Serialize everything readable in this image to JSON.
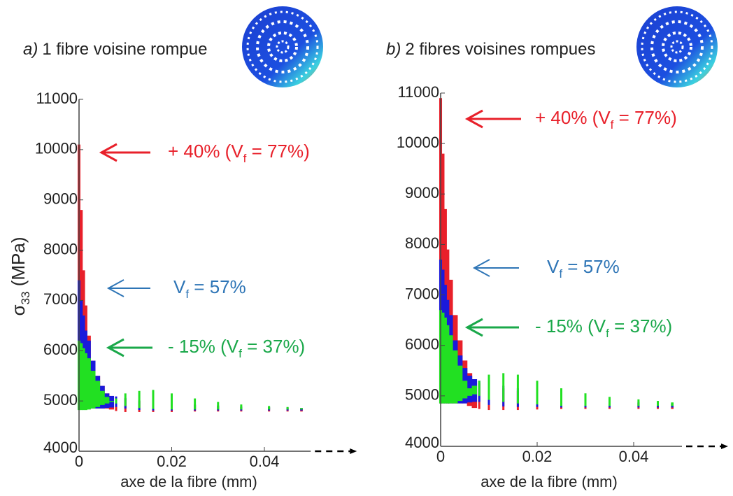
{
  "chart_data": [
    {
      "type": "band",
      "panel_label": "a)",
      "title": "1 fibre voisine rompue",
      "ylabel": [
        "σ",
        "33",
        " (MPa)"
      ],
      "xlabel": "axe de la fibre (mm)",
      "xlim": [
        0,
        0.05
      ],
      "xticks": [
        0,
        0.02,
        0.04
      ],
      "ylim": [
        4000,
        11000
      ],
      "yticks": [
        4000,
        5000,
        6000,
        7000,
        8000,
        9000,
        10000,
        11000
      ],
      "x": [
        0,
        0.0005,
        0.001,
        0.0015,
        0.002,
        0.003,
        0.004,
        0.005,
        0.006,
        0.007,
        0.008,
        0.01,
        0.013,
        0.016,
        0.02,
        0.025,
        0.03,
        0.035,
        0.041,
        0.045,
        0.048
      ],
      "series": [
        {
          "color": "#e8202a",
          "values": [
            10100,
            8800,
            7600,
            6900,
            6300,
            5800,
            5500,
            5300,
            5150,
            5100,
            5080,
            5050,
            5000,
            4980,
            4950,
            4920,
            4900,
            4880,
            4870,
            4860,
            4850
          ],
          "lower": [
            4850,
            4850,
            4850,
            4850,
            4850,
            4850,
            4850,
            4850,
            4850,
            4830,
            4800,
            4780,
            4780,
            4780,
            4780,
            4790,
            4790,
            4790,
            4790,
            4790,
            4790
          ]
        },
        {
          "color": "#1a1adb",
          "values": [
            7400,
            7000,
            6700,
            6400,
            6200,
            5800,
            5500,
            5300,
            5150,
            5100,
            5090,
            5060,
            5010,
            4990,
            4960,
            4930,
            4910,
            4890,
            4880,
            4870,
            4860
          ],
          "lower": [
            4850,
            4850,
            4850,
            4850,
            4850,
            4850,
            4850,
            4850,
            4860,
            4870,
            4880,
            4850,
            4820,
            4810,
            4810,
            4810,
            4810,
            4810,
            4810,
            4810,
            4810
          ]
        },
        {
          "color": "#22e022",
          "values": [
            6200,
            6150,
            6050,
            5950,
            5850,
            5600,
            5400,
            5200,
            5080,
            5000,
            5050,
            5150,
            5200,
            5220,
            5150,
            5050,
            4980,
            4930,
            4900,
            4880,
            4860
          ],
          "lower": [
            4820,
            4820,
            4820,
            4820,
            4830,
            4850,
            4880,
            4920,
            4950,
            4980,
            4950,
            4900,
            4860,
            4840,
            4830,
            4830,
            4830,
            4830,
            4830,
            4830,
            4830
          ]
        }
      ],
      "annotations": [
        {
          "parts": [
            "+ 40% (V",
            "f",
            " = 77%)"
          ],
          "color": "#e8202a"
        },
        {
          "parts": [
            "V",
            "f",
            " = 57%"
          ],
          "color": "#2e75b6"
        },
        {
          "parts": [
            "- 15% (V",
            "f",
            " = 37%)"
          ],
          "color": "#1aa84a"
        }
      ]
    },
    {
      "type": "band",
      "panel_label": "b)",
      "title": "2 fibres voisines rompues",
      "xlabel": "axe de la fibre (mm)",
      "xlim": [
        0,
        0.05
      ],
      "xticks": [
        0,
        0.02,
        0.04
      ],
      "ylim": [
        4000,
        11000
      ],
      "yticks": [
        4000,
        5000,
        6000,
        7000,
        8000,
        9000,
        10000,
        11000
      ],
      "x": [
        0,
        0.0005,
        0.001,
        0.0015,
        0.002,
        0.003,
        0.004,
        0.005,
        0.006,
        0.007,
        0.008,
        0.01,
        0.013,
        0.016,
        0.02,
        0.025,
        0.03,
        0.035,
        0.041,
        0.045,
        0.048
      ],
      "series": [
        {
          "color": "#e8202a",
          "values": [
            10900,
            9800,
            8700,
            7900,
            7300,
            6600,
            6100,
            5700,
            5450,
            5300,
            5250,
            5200,
            5150,
            5100,
            5050,
            4980,
            4920,
            4880,
            4860,
            4850,
            4840
          ],
          "lower": [
            4850,
            4850,
            4850,
            4850,
            4850,
            4850,
            4850,
            4850,
            4800,
            4760,
            4740,
            4720,
            4720,
            4720,
            4730,
            4740,
            4740,
            4740,
            4740,
            4740,
            4740
          ]
        },
        {
          "color": "#1a1adb",
          "values": [
            7700,
            7500,
            7200,
            6900,
            6600,
            6100,
            5800,
            5550,
            5400,
            5330,
            5300,
            5250,
            5200,
            5150,
            5080,
            5000,
            4940,
            4900,
            4880,
            4860,
            4850
          ],
          "lower": [
            4850,
            4850,
            4850,
            4850,
            4850,
            4850,
            4850,
            4850,
            4870,
            4880,
            4880,
            4820,
            4790,
            4780,
            4780,
            4770,
            4770,
            4770,
            4770,
            4770,
            4770
          ]
        },
        {
          "color": "#22e022",
          "values": [
            6700,
            6650,
            6550,
            6400,
            6200,
            5900,
            5600,
            5300,
            5150,
            5200,
            5300,
            5420,
            5450,
            5420,
            5300,
            5150,
            5050,
            4980,
            4930,
            4900,
            4870
          ],
          "lower": [
            4850,
            4850,
            4850,
            4850,
            4850,
            4850,
            4900,
            4950,
            5000,
            5030,
            5000,
            4920,
            4880,
            4850,
            4830,
            4800,
            4800,
            4800,
            4800,
            4800,
            4800
          ]
        }
      ],
      "annotations": [
        {
          "parts": [
            "+ 40% (V",
            "f",
            " = 77%)"
          ],
          "color": "#e8202a"
        },
        {
          "parts": [
            "V",
            "f",
            " = 57%"
          ],
          "color": "#2e75b6"
        },
        {
          "parts": [
            "- 15% (V",
            "f",
            " = 37%)"
          ],
          "color": "#1aa84a"
        }
      ]
    }
  ]
}
